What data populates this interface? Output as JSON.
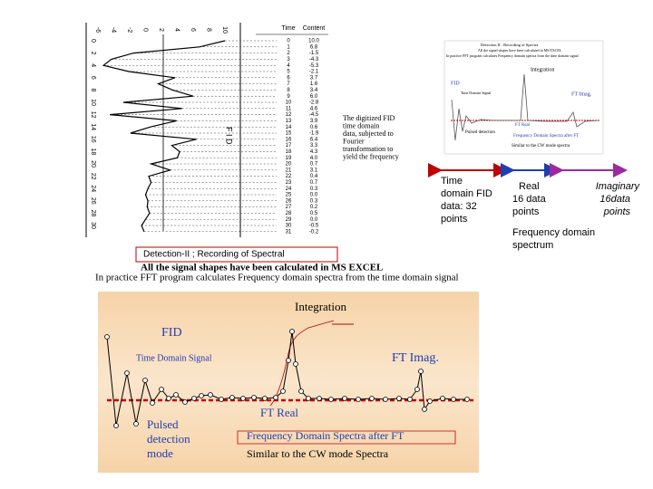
{
  "slide": {
    "table": {
      "headers": [
        "Time",
        "Content"
      ],
      "times": [
        "0",
        "1",
        "2",
        "3",
        "4",
        "5",
        "6",
        "7",
        "8",
        "9",
        "10",
        "11",
        "12",
        "13",
        "14",
        "15",
        "16",
        "17",
        "18",
        "19",
        "20",
        "21",
        "22",
        "23",
        "24",
        "25",
        "26",
        "27",
        "28",
        "29",
        "30",
        "31"
      ],
      "contents": [
        "10.0",
        "6.8",
        "-1.5",
        "-4.3",
        "-5.3",
        "-2.1",
        "3.7",
        "1.6",
        "3.4",
        "6.0",
        "-2.8",
        "4.6",
        "-4.5",
        "3.9",
        "0.6",
        "-1.9",
        "6.4",
        "3.3",
        "4.3",
        "4.0",
        "0.7",
        "3.1",
        "0.4",
        "0.7",
        "0.3",
        "0.0",
        "0.3",
        "0.2",
        "0.5",
        "0.0",
        "-0.5",
        "-0.2"
      ]
    },
    "axis_top": [
      "-6",
      "-4",
      "-2",
      "0",
      "2",
      "4",
      "6",
      "8",
      "10"
    ],
    "axis_left": [
      "0",
      "2",
      "4",
      "6",
      "8",
      "10",
      "12",
      "14",
      "16",
      "18",
      "20",
      "22",
      "24",
      "26",
      "28",
      "30"
    ],
    "rotated_label": "F I D",
    "note": [
      "The digitized FID",
      "time domain",
      "data, subjected to",
      "Fourier",
      "transformation to",
      "yield the frequency"
    ],
    "thumbnail": {
      "title": "Detection II : Recording of Spectra",
      "line1": "All the signal shapes have been calculated in MS EXCEL",
      "line2": "In practice FFT program calculates Frequency domain spectra from the time domain signal",
      "integration": "Integration",
      "fid": "FID",
      "time_signal": "Time Domain Signal",
      "ft_imag": "FT Imag.",
      "ft_real": "FT Real",
      "pulsed": "Pulsed detection",
      "freq": "Frequency Domain Spectra after FT",
      "similar": "Similar to the CW mode spectra"
    },
    "labels": {
      "time_domain": [
        "Time",
        "domain FID",
        "data: 32",
        "points"
      ],
      "real": [
        "Real",
        "16 data",
        "points"
      ],
      "imaginary": [
        "Imaginary",
        "16data",
        "points"
      ],
      "freq_spectrum": [
        "Frequency domain",
        "spectrum"
      ]
    },
    "box": "Detection-II ; Recording of Spectral",
    "line1": "All the signal shapes have been calculated in MS EXCEL",
    "line2": "In practice FFT program calculates Frequency domain spectra from the time domain signal",
    "figure": {
      "integration": "Integration",
      "fid": "FID",
      "time_signal": "Time Domain Signal",
      "ft_imag": "FT Imag.",
      "ft_real": "FT Real",
      "pulsed": [
        "Pulsed",
        "detection",
        "mode"
      ],
      "freq": "Frequency Domain Spectra after FT",
      "similar": "Similar to the CW mode Spectra"
    }
  }
}
